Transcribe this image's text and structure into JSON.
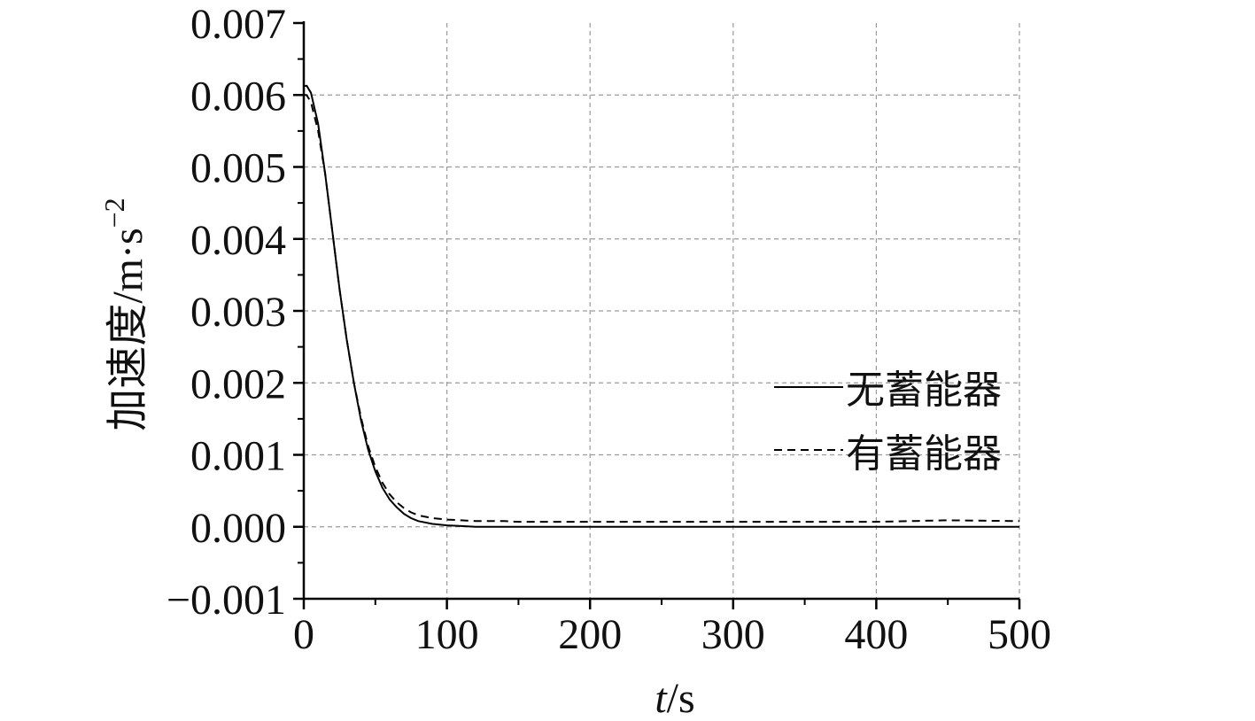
{
  "chart_data": {
    "type": "line",
    "xlabel_var": "t",
    "xlabel_unit": "/s",
    "ylabel": "加速度/m·s",
    "ylabel_sup": "−2",
    "xlim": [
      0,
      500
    ],
    "ylim": [
      -0.001,
      0.007
    ],
    "xticks": [
      "0",
      "100",
      "200",
      "300",
      "400",
      "500"
    ],
    "yticks": [
      "−0.001",
      "0.000",
      "0.001",
      "0.002",
      "0.003",
      "0.004",
      "0.005",
      "0.006",
      "0.007"
    ],
    "grid": true,
    "legend_position": "right",
    "series": [
      {
        "name": "无蓄能器",
        "style": "solid",
        "color": "#000000",
        "x": [
          0,
          2,
          5,
          10,
          15,
          20,
          25,
          30,
          35,
          40,
          45,
          50,
          55,
          60,
          65,
          70,
          75,
          80,
          90,
          100,
          110,
          120,
          130,
          140,
          150,
          200,
          300,
          400,
          500
        ],
        "y": [
          0.00612,
          0.00613,
          0.00603,
          0.0056,
          0.0049,
          0.0041,
          0.0033,
          0.0026,
          0.002,
          0.00148,
          0.00107,
          0.00077,
          0.00054,
          0.00038,
          0.00027,
          0.00018,
          0.00012,
          8e-05,
          4e-05,
          2e-05,
          1e-05,
          0.0,
          0.0,
          0.0,
          0.0,
          0.0,
          0.0,
          0.0,
          0.0
        ]
      },
      {
        "name": "有蓄能器",
        "style": "dashed",
        "color": "#000000",
        "x": [
          0,
          2,
          5,
          10,
          15,
          20,
          25,
          30,
          35,
          40,
          45,
          50,
          55,
          60,
          65,
          70,
          75,
          80,
          90,
          100,
          110,
          120,
          130,
          140,
          150,
          200,
          300,
          400,
          450,
          500
        ],
        "y": [
          0.006,
          0.006,
          0.0059,
          0.0055,
          0.0049,
          0.0041,
          0.0033,
          0.0026,
          0.002,
          0.00152,
          0.00112,
          0.00083,
          0.00061,
          0.00045,
          0.00034,
          0.00026,
          0.0002,
          0.00016,
          0.00012,
          0.0001,
          9e-05,
          8e-05,
          8e-05,
          8e-05,
          7e-05,
          7e-05,
          7e-05,
          7e-05,
          9e-05,
          8e-05
        ]
      }
    ]
  }
}
